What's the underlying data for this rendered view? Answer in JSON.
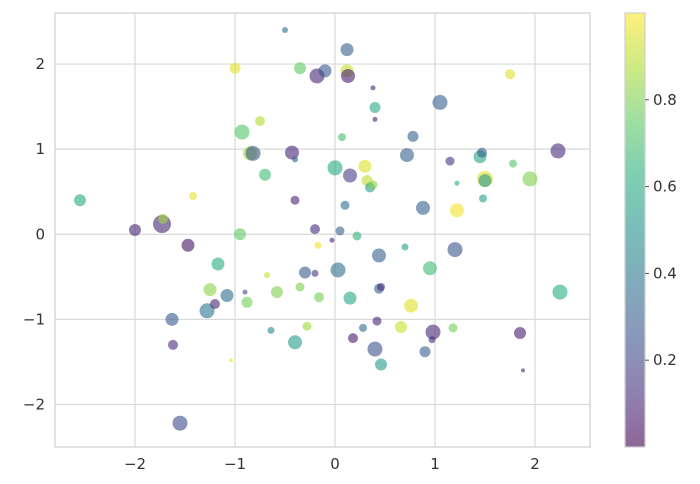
{
  "chart_data": {
    "type": "scatter",
    "title": "",
    "xlabel": "",
    "ylabel": "",
    "xlim": [
      -2.8,
      2.55
    ],
    "ylim": [
      -2.5,
      2.6
    ],
    "x_ticks": [
      -2,
      -1,
      0,
      1,
      2
    ],
    "y_ticks": [
      -2,
      -1,
      0,
      1,
      2
    ],
    "x_tick_labels": [
      "−2",
      "−1",
      "0",
      "1",
      "2"
    ],
    "y_tick_labels": [
      "−2",
      "−1",
      "0",
      "1",
      "2"
    ],
    "grid": true,
    "marker_alpha": 0.6,
    "colormap": "viridis",
    "colorbar": {
      "min": 0.0,
      "max": 1.0,
      "ticks": [
        0.2,
        0.4,
        0.6,
        0.8
      ],
      "tick_labels": [
        "0.2",
        "0.4",
        "0.6",
        "0.8"
      ],
      "placement": "right"
    },
    "points": [
      {
        "x": -2.55,
        "y": 0.4,
        "c": 0.6,
        "s": 12
      },
      {
        "x": -2.0,
        "y": 0.05,
        "c": 0.1,
        "s": 12
      },
      {
        "x": -1.73,
        "y": 0.12,
        "c": 0.1,
        "s": 18
      },
      {
        "x": -1.72,
        "y": 0.18,
        "c": 0.85,
        "s": 10
      },
      {
        "x": -1.63,
        "y": -1.0,
        "c": 0.28,
        "s": 13
      },
      {
        "x": -1.62,
        "y": -1.3,
        "c": 0.12,
        "s": 10
      },
      {
        "x": -1.55,
        "y": -2.22,
        "c": 0.22,
        "s": 15
      },
      {
        "x": -1.47,
        "y": -0.13,
        "c": 0.05,
        "s": 13
      },
      {
        "x": -1.42,
        "y": 0.45,
        "c": 0.96,
        "s": 8
      },
      {
        "x": -1.25,
        "y": -0.65,
        "c": 0.82,
        "s": 13
      },
      {
        "x": -1.28,
        "y": -0.9,
        "c": 0.38,
        "s": 15
      },
      {
        "x": -1.17,
        "y": -0.35,
        "c": 0.62,
        "s": 13
      },
      {
        "x": -1.2,
        "y": -0.82,
        "c": 0.1,
        "s": 10
      },
      {
        "x": -1.08,
        "y": -0.72,
        "c": 0.35,
        "s": 13
      },
      {
        "x": -1.04,
        "y": -1.48,
        "c": 0.98,
        "s": 4
      },
      {
        "x": -1.0,
        "y": 1.95,
        "c": 0.95,
        "s": 11
      },
      {
        "x": -0.95,
        "y": 0.0,
        "c": 0.75,
        "s": 12
      },
      {
        "x": -0.93,
        "y": 1.2,
        "c": 0.72,
        "s": 15
      },
      {
        "x": -0.9,
        "y": -0.68,
        "c": 0.22,
        "s": 5
      },
      {
        "x": -0.88,
        "y": -0.8,
        "c": 0.78,
        "s": 11
      },
      {
        "x": -0.85,
        "y": 0.95,
        "c": 0.85,
        "s": 14
      },
      {
        "x": -0.82,
        "y": 0.95,
        "c": 0.25,
        "s": 15
      },
      {
        "x": -0.75,
        "y": 1.33,
        "c": 0.88,
        "s": 10
      },
      {
        "x": -0.7,
        "y": 0.7,
        "c": 0.68,
        "s": 12
      },
      {
        "x": -0.68,
        "y": -0.48,
        "c": 0.92,
        "s": 6
      },
      {
        "x": -0.64,
        "y": -1.13,
        "c": 0.45,
        "s": 7
      },
      {
        "x": -0.58,
        "y": -0.68,
        "c": 0.8,
        "s": 12
      },
      {
        "x": -0.5,
        "y": 2.4,
        "c": 0.35,
        "s": 6
      },
      {
        "x": -0.43,
        "y": 0.96,
        "c": 0.1,
        "s": 14
      },
      {
        "x": -0.4,
        "y": 0.4,
        "c": 0.1,
        "s": 9
      },
      {
        "x": -0.4,
        "y": 0.88,
        "c": 0.3,
        "s": 6
      },
      {
        "x": -0.4,
        "y": -1.27,
        "c": 0.55,
        "s": 14
      },
      {
        "x": -0.35,
        "y": 1.95,
        "c": 0.75,
        "s": 12
      },
      {
        "x": -0.35,
        "y": -0.62,
        "c": 0.8,
        "s": 9
      },
      {
        "x": -0.3,
        "y": -0.45,
        "c": 0.28,
        "s": 12
      },
      {
        "x": -0.28,
        "y": -1.08,
        "c": 0.85,
        "s": 9
      },
      {
        "x": -0.2,
        "y": 0.06,
        "c": 0.12,
        "s": 10
      },
      {
        "x": -0.2,
        "y": -0.46,
        "c": 0.15,
        "s": 7
      },
      {
        "x": -0.18,
        "y": 1.86,
        "c": 0.1,
        "s": 15
      },
      {
        "x": -0.16,
        "y": -0.74,
        "c": 0.78,
        "s": 10
      },
      {
        "x": -0.17,
        "y": -0.13,
        "c": 0.98,
        "s": 7
      },
      {
        "x": -0.1,
        "y": 1.92,
        "c": 0.28,
        "s": 13
      },
      {
        "x": -0.03,
        "y": -0.07,
        "c": 0.1,
        "s": 5
      },
      {
        "x": 0.0,
        "y": 0.78,
        "c": 0.6,
        "s": 15
      },
      {
        "x": 0.03,
        "y": -0.42,
        "c": 0.35,
        "s": 15
      },
      {
        "x": 0.05,
        "y": 0.04,
        "c": 0.3,
        "s": 9
      },
      {
        "x": 0.07,
        "y": 1.14,
        "c": 0.7,
        "s": 8
      },
      {
        "x": 0.1,
        "y": 0.34,
        "c": 0.35,
        "s": 9
      },
      {
        "x": 0.12,
        "y": 2.17,
        "c": 0.3,
        "s": 13
      },
      {
        "x": 0.12,
        "y": 1.92,
        "c": 0.92,
        "s": 13
      },
      {
        "x": 0.13,
        "y": 1.86,
        "c": 0.08,
        "s": 14
      },
      {
        "x": 0.15,
        "y": 0.69,
        "c": 0.18,
        "s": 14
      },
      {
        "x": 0.15,
        "y": -0.75,
        "c": 0.6,
        "s": 13
      },
      {
        "x": 0.18,
        "y": -1.22,
        "c": 0.08,
        "s": 10
      },
      {
        "x": 0.22,
        "y": -0.02,
        "c": 0.65,
        "s": 9
      },
      {
        "x": 0.28,
        "y": -1.1,
        "c": 0.35,
        "s": 8
      },
      {
        "x": 0.3,
        "y": 0.8,
        "c": 0.95,
        "s": 13
      },
      {
        "x": 0.32,
        "y": 0.63,
        "c": 0.9,
        "s": 11
      },
      {
        "x": 0.35,
        "y": 0.55,
        "c": 0.55,
        "s": 10
      },
      {
        "x": 0.38,
        "y": 0.58,
        "c": 0.82,
        "s": 9
      },
      {
        "x": 0.38,
        "y": 1.72,
        "c": 0.1,
        "s": 5
      },
      {
        "x": 0.4,
        "y": 1.49,
        "c": 0.6,
        "s": 11
      },
      {
        "x": 0.4,
        "y": 1.35,
        "c": 0.1,
        "s": 5
      },
      {
        "x": 0.4,
        "y": -1.35,
        "c": 0.25,
        "s": 15
      },
      {
        "x": 0.42,
        "y": -1.02,
        "c": 0.1,
        "s": 9
      },
      {
        "x": 0.44,
        "y": -0.25,
        "c": 0.3,
        "s": 14
      },
      {
        "x": 0.44,
        "y": -0.64,
        "c": 0.3,
        "s": 10
      },
      {
        "x": 0.46,
        "y": -0.62,
        "c": 0.12,
        "s": 8
      },
      {
        "x": 0.46,
        "y": -1.53,
        "c": 0.55,
        "s": 12
      },
      {
        "x": 0.66,
        "y": -1.09,
        "c": 0.92,
        "s": 12
      },
      {
        "x": 0.7,
        "y": -0.15,
        "c": 0.55,
        "s": 7
      },
      {
        "x": 0.72,
        "y": 0.93,
        "c": 0.3,
        "s": 14
      },
      {
        "x": 0.76,
        "y": -0.84,
        "c": 0.95,
        "s": 14
      },
      {
        "x": 0.78,
        "y": 1.15,
        "c": 0.3,
        "s": 11
      },
      {
        "x": 0.88,
        "y": 0.31,
        "c": 0.3,
        "s": 14
      },
      {
        "x": 0.9,
        "y": -1.38,
        "c": 0.3,
        "s": 11
      },
      {
        "x": 0.95,
        "y": -0.4,
        "c": 0.68,
        "s": 14
      },
      {
        "x": 0.97,
        "y": -1.24,
        "c": 0.15,
        "s": 7
      },
      {
        "x": 0.98,
        "y": -1.15,
        "c": 0.1,
        "s": 15
      },
      {
        "x": 1.05,
        "y": 1.55,
        "c": 0.3,
        "s": 15
      },
      {
        "x": 1.15,
        "y": 0.86,
        "c": 0.15,
        "s": 9
      },
      {
        "x": 1.18,
        "y": -1.1,
        "c": 0.78,
        "s": 9
      },
      {
        "x": 1.22,
        "y": 0.28,
        "c": 0.98,
        "s": 14
      },
      {
        "x": 1.22,
        "y": 0.6,
        "c": 0.6,
        "s": 5
      },
      {
        "x": 1.2,
        "y": -0.18,
        "c": 0.25,
        "s": 15
      },
      {
        "x": 1.45,
        "y": 0.91,
        "c": 0.58,
        "s": 13
      },
      {
        "x": 1.47,
        "y": 0.96,
        "c": 0.3,
        "s": 10
      },
      {
        "x": 1.48,
        "y": 0.42,
        "c": 0.55,
        "s": 8
      },
      {
        "x": 1.5,
        "y": 0.65,
        "c": 0.95,
        "s": 16
      },
      {
        "x": 1.5,
        "y": 0.63,
        "c": 0.52,
        "s": 13
      },
      {
        "x": 1.75,
        "y": 1.88,
        "c": 0.95,
        "s": 10
      },
      {
        "x": 1.78,
        "y": 0.83,
        "c": 0.72,
        "s": 8
      },
      {
        "x": 1.85,
        "y": -1.16,
        "c": 0.08,
        "s": 12
      },
      {
        "x": 1.88,
        "y": -1.6,
        "c": 0.1,
        "s": 4
      },
      {
        "x": 1.95,
        "y": 0.65,
        "c": 0.8,
        "s": 15
      },
      {
        "x": 2.23,
        "y": 0.98,
        "c": 0.12,
        "s": 15
      },
      {
        "x": 2.25,
        "y": -0.68,
        "c": 0.62,
        "s": 15
      }
    ]
  }
}
